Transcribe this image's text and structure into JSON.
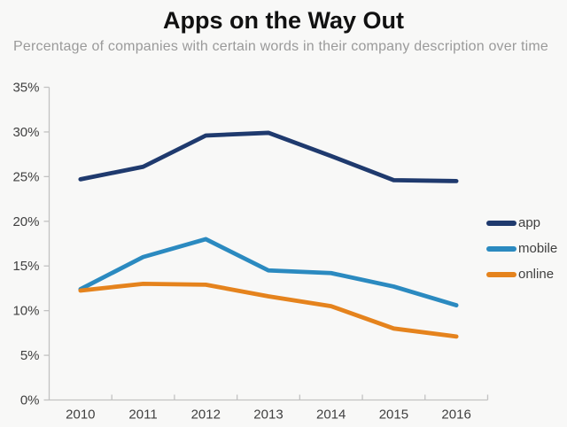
{
  "title": "Apps on the Way Out",
  "subtitle": "Percentage of companies with certain words in their company description over time",
  "colors": {
    "app": "#1f3a6e",
    "mobile": "#2b8ac0",
    "online": "#e5831d",
    "axis": "#c2c2c2",
    "tick_text": "#404040",
    "title_text": "#111111",
    "subtitle_text": "#9a9a9a",
    "background": "#f8f8f7"
  },
  "chart_data": {
    "type": "line",
    "x": [
      2010,
      2011,
      2012,
      2013,
      2014,
      2015,
      2016
    ],
    "series": [
      {
        "name": "app",
        "color": "#1f3a6e",
        "values": [
          24.7,
          26.1,
          29.6,
          29.9,
          27.3,
          24.6,
          24.5
        ]
      },
      {
        "name": "mobile",
        "color": "#2b8ac0",
        "values": [
          12.4,
          16.0,
          18.0,
          14.5,
          14.2,
          12.7,
          10.6
        ]
      },
      {
        "name": "online",
        "color": "#e5831d",
        "values": [
          12.25,
          13.0,
          12.9,
          11.6,
          10.5,
          8.0,
          7.1
        ]
      }
    ],
    "ylim": [
      0,
      35
    ],
    "ytick_step": 5,
    "ytick_labels": [
      "0%",
      "5%",
      "10%",
      "15%",
      "20%",
      "25%",
      "30%",
      "35%"
    ],
    "xtick_labels": [
      "2010",
      "2011",
      "2012",
      "2013",
      "2014",
      "2015",
      "2016"
    ],
    "grid": false,
    "legend_position": "right"
  }
}
